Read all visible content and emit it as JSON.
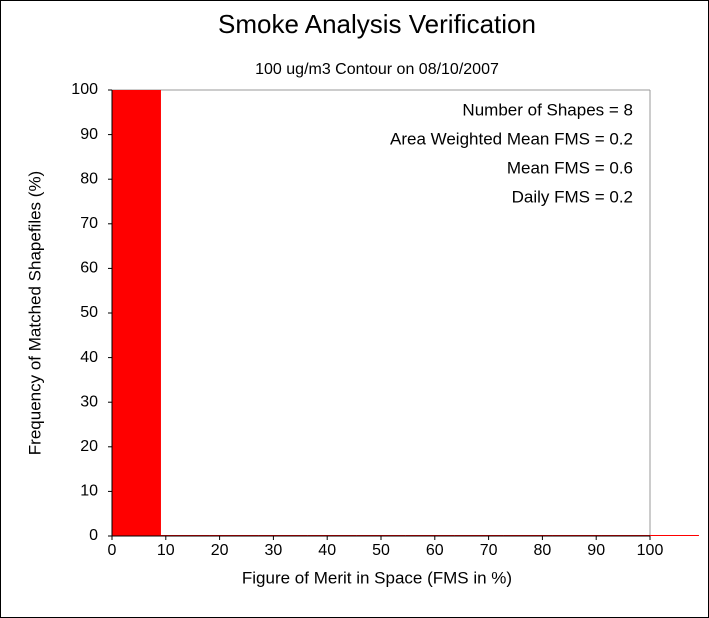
{
  "chart_data": {
    "type": "histogram",
    "title": "Smoke Analysis Verification",
    "subtitle": "100 ug/m3 Contour on 08/10/2007",
    "x_label": "Figure of Merit in Space (FMS in %)",
    "y_label": "Frequency of Matched Shapefiles (%)",
    "annotations": [
      "Number of Shapes = 8",
      "Area Weighted Mean FMS = 0.2",
      "Mean FMS = 0.6",
      "Daily FMS = 0.2"
    ],
    "bins": [
      0,
      9.1,
      18.2,
      27.3,
      36.4,
      45.5,
      54.5,
      63.6,
      72.7,
      81.8,
      90.9,
      100,
      109.1
    ],
    "values": [
      100,
      0,
      0,
      0,
      0,
      0,
      0,
      0,
      0,
      0,
      0,
      0
    ],
    "color": "#ff0000",
    "xlim": [
      0,
      100
    ],
    "xticks": [
      0,
      10,
      20,
      30,
      40,
      50,
      60,
      70,
      80,
      90,
      100
    ],
    "ylim": [
      0,
      100
    ],
    "yticks": [
      0,
      10,
      20,
      30,
      40,
      50,
      60,
      70,
      80,
      90,
      100
    ]
  }
}
